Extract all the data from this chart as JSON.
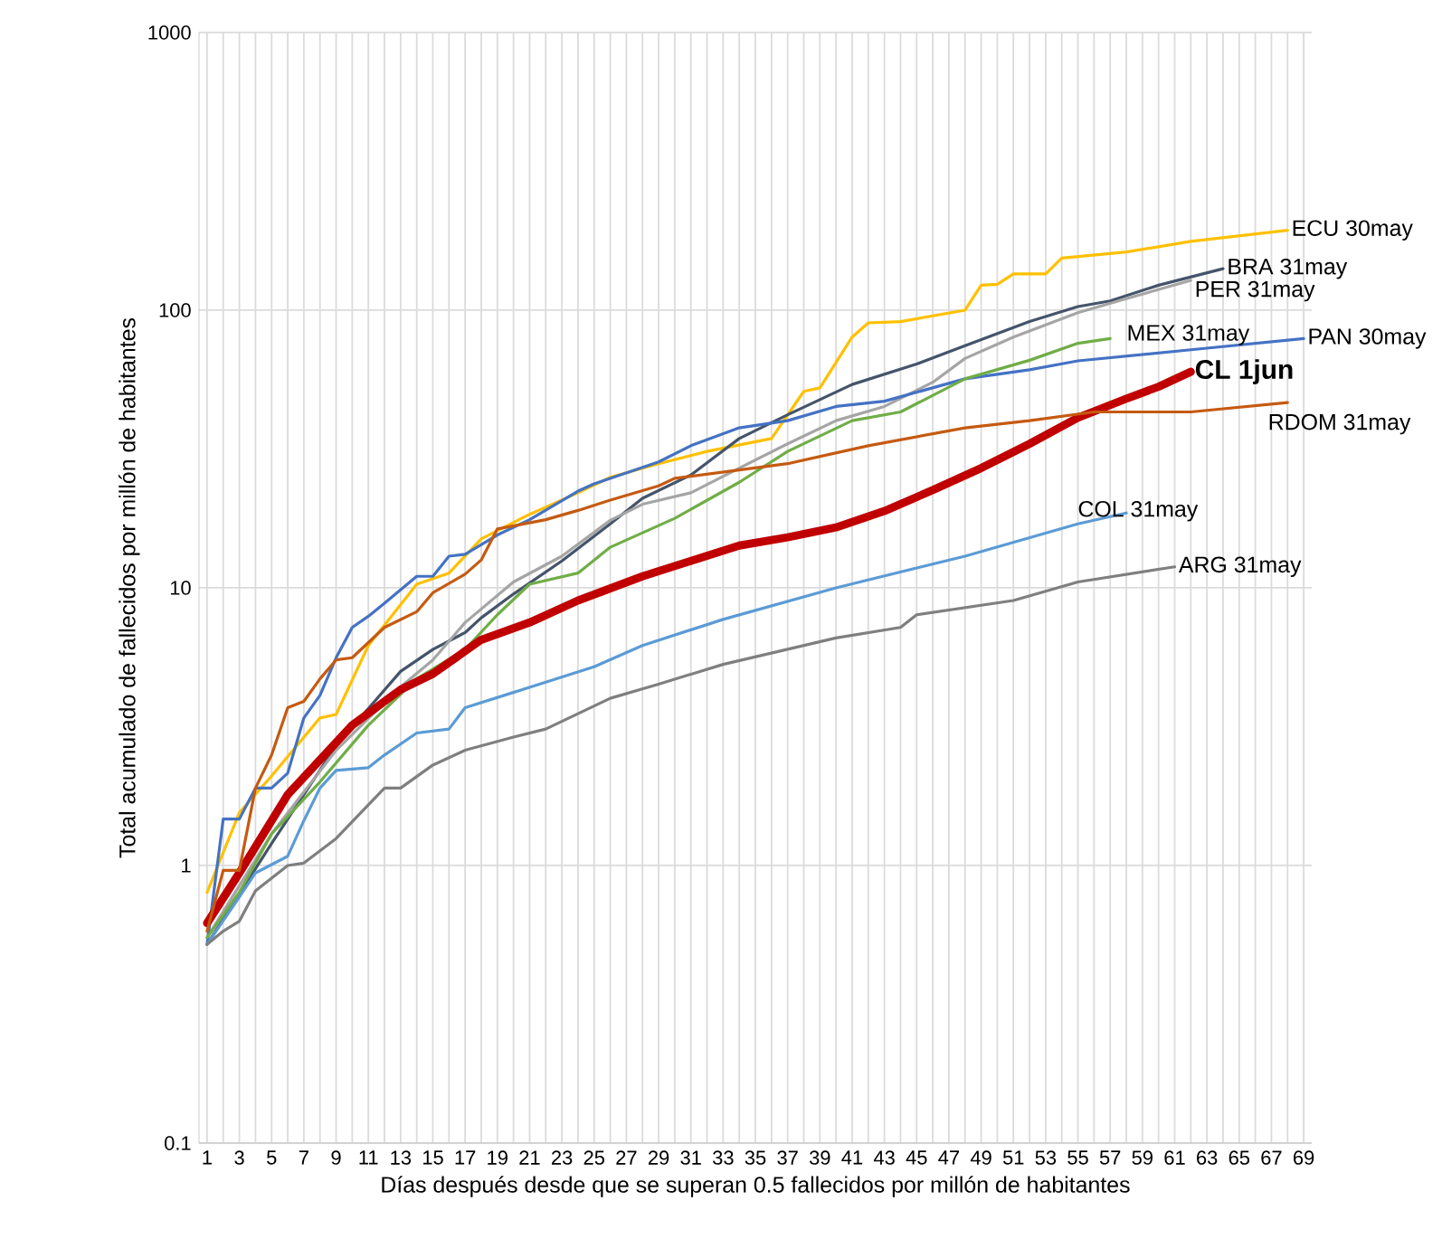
{
  "chart_data": {
    "type": "line",
    "xlabel": "Días después desde que se superan 0.5 fallecidos por millón de habitantes",
    "ylabel": "Total acumulado de fallecidos por millón de habitantes",
    "log": "y",
    "grid": true,
    "xlim": [
      0.5,
      69.5
    ],
    "xticks": [
      1,
      {
        "value": 2,
        "label": null
      },
      3,
      {
        "value": 4,
        "label": null
      },
      5,
      {
        "value": 6,
        "label": null
      },
      7,
      {
        "value": 8,
        "label": null
      },
      9,
      {
        "value": 10,
        "label": null
      },
      11,
      {
        "value": 12,
        "label": null
      },
      13,
      {
        "value": 14,
        "label": null
      },
      15,
      {
        "value": 16,
        "label": null
      },
      17,
      {
        "value": 18,
        "label": null
      },
      19,
      {
        "value": 20,
        "label": null
      },
      21,
      {
        "value": 22,
        "label": null
      },
      23,
      {
        "value": 24,
        "label": null
      },
      25,
      {
        "value": 26,
        "label": null
      },
      27,
      {
        "value": 28,
        "label": null
      },
      29,
      {
        "value": 30,
        "label": null
      },
      31,
      {
        "value": 32,
        "label": null
      },
      33,
      {
        "value": 34,
        "label": null
      },
      35,
      {
        "value": 36,
        "label": null
      },
      37,
      {
        "value": 38,
        "label": null
      },
      39,
      {
        "value": 40,
        "label": null
      },
      41,
      {
        "value": 42,
        "label": null
      },
      43,
      {
        "value": 44,
        "label": null
      },
      45,
      {
        "value": 46,
        "label": null
      },
      47,
      {
        "value": 48,
        "label": null
      },
      49,
      {
        "value": 50,
        "label": null
      },
      51,
      {
        "value": 52,
        "label": null
      },
      53,
      {
        "value": 54,
        "label": null
      },
      55,
      {
        "value": 56,
        "label": null
      },
      57,
      {
        "value": 58,
        "label": null
      },
      59,
      {
        "value": 60,
        "label": null
      },
      61,
      {
        "value": 62,
        "label": null
      },
      63,
      {
        "value": 64,
        "label": null
      },
      65,
      {
        "value": 66,
        "label": null
      },
      67,
      {
        "value": 68,
        "label": null
      },
      69
    ],
    "ylim": [
      0.1,
      1000
    ],
    "yticks": [
      0.1,
      1,
      10,
      100,
      1000
    ],
    "series": [
      {
        "name": "ECU 30may",
        "color": "#ffc000",
        "x": [
          1,
          3,
          5,
          8,
          9,
          11,
          14,
          16,
          18,
          21,
          24,
          26,
          29,
          32,
          36,
          38,
          39,
          41,
          42,
          44,
          48,
          49,
          50,
          51,
          53,
          54,
          58,
          62,
          68
        ],
        "values": [
          0.8,
          1.55,
          2.1,
          3.4,
          3.5,
          6.2,
          10.3,
          11.3,
          15,
          18.4,
          22,
          25,
          28,
          31,
          34.5,
          51,
          52.5,
          80,
          90,
          91,
          100,
          123,
          124,
          135,
          135,
          154,
          162,
          177,
          194
        ]
      },
      {
        "name": "BRA 31may",
        "color": "#44546a",
        "x": [
          1,
          5,
          9,
          13,
          15,
          17,
          18,
          20,
          23,
          26,
          28,
          31,
          34,
          37,
          41,
          45,
          48,
          52,
          55,
          57,
          60,
          64
        ],
        "values": [
          0.52,
          1.2,
          2.7,
          5,
          6,
          6.9,
          7.8,
          9.5,
          12.5,
          17,
          21,
          25.5,
          34.5,
          42,
          54,
          64,
          74.5,
          91,
          103,
          108,
          123,
          141
        ]
      },
      {
        "name": "PER 31may",
        "color": "#a5a5a5",
        "x": [
          1,
          5,
          9,
          13,
          15,
          17,
          20,
          23,
          26,
          28,
          31,
          34,
          37,
          40,
          43,
          46,
          48,
          51,
          55,
          58,
          62
        ],
        "values": [
          0.55,
          1.3,
          2.6,
          4.4,
          5.5,
          7.5,
          10.5,
          13,
          17.5,
          20,
          22,
          27,
          33,
          40,
          45,
          55,
          67,
          80,
          98,
          110,
          128
        ]
      },
      {
        "name": "PAN 30may",
        "color": "#4472c4",
        "x": [
          1,
          2,
          3,
          4,
          5,
          6,
          7,
          8,
          9,
          10,
          11,
          12,
          14,
          15,
          16,
          17,
          19,
          21,
          24,
          25,
          29,
          31,
          34,
          37,
          40,
          43,
          48,
          52,
          55,
          62,
          69
        ],
        "values": [
          0.52,
          1.47,
          1.47,
          1.9,
          1.9,
          2.15,
          3.4,
          4.1,
          5.6,
          7.2,
          7.9,
          8.8,
          11,
          11,
          13,
          13.2,
          15.5,
          17.6,
          22.3,
          23.7,
          28.4,
          32.5,
          37.7,
          40,
          45,
          47,
          56.6,
          61,
          65.7,
          72,
          79
        ]
      },
      {
        "name": "MEX 31may",
        "color": "#70ad47",
        "x": [
          1,
          3,
          5,
          8,
          11,
          14,
          17,
          19,
          21,
          24,
          26,
          30,
          34,
          37,
          41,
          44,
          48,
          52,
          55,
          57
        ],
        "values": [
          0.55,
          0.8,
          1.3,
          2,
          3.2,
          4.7,
          6,
          8,
          10.3,
          11.3,
          14,
          17.8,
          24,
          31,
          40,
          43,
          56.6,
          66,
          76,
          79
        ]
      },
      {
        "name": "CL 1jun",
        "color": "#c00000",
        "x": [
          1,
          3,
          6,
          10,
          13,
          15,
          18,
          21,
          24,
          28,
          31,
          34,
          37,
          40,
          43,
          46,
          49,
          52,
          55,
          58,
          60,
          62
        ],
        "values": [
          0.62,
          0.94,
          1.8,
          3.2,
          4.3,
          4.9,
          6.5,
          7.5,
          9,
          11,
          12.5,
          14.2,
          15.2,
          16.5,
          18.9,
          22.5,
          27,
          33,
          41,
          48,
          53,
          60
        ]
      },
      {
        "name": "RDOM 31may",
        "color": "#c55a11",
        "x": [
          1,
          2,
          3,
          4,
          5,
          6,
          7,
          8,
          9,
          10,
          12,
          14,
          15,
          17,
          18,
          19,
          22,
          24,
          26,
          29,
          30,
          37,
          42,
          48,
          52,
          56,
          62,
          68
        ],
        "values": [
          0.58,
          0.96,
          0.96,
          1.9,
          2.5,
          3.7,
          3.9,
          4.7,
          5.5,
          5.6,
          7.2,
          8.2,
          9.6,
          11.2,
          12.6,
          16.3,
          17.6,
          19,
          20.7,
          23.3,
          24.8,
          28,
          32.5,
          37.7,
          40,
          43,
          43,
          46.5
        ]
      },
      {
        "name": "COL 31may",
        "color": "#5b9bd5",
        "x": [
          1,
          3,
          4,
          6,
          7,
          8,
          9,
          11,
          12,
          14,
          16,
          17,
          20,
          25,
          28,
          33,
          40,
          48,
          55,
          58
        ],
        "values": [
          0.52,
          0.77,
          0.94,
          1.08,
          1.45,
          1.9,
          2.2,
          2.25,
          2.5,
          3,
          3.1,
          3.7,
          4.2,
          5.2,
          6.2,
          7.7,
          10,
          13,
          17,
          18.6
        ]
      },
      {
        "name": "ARG 31may",
        "color": "#7f7f7f",
        "x": [
          1,
          2,
          3,
          4,
          6,
          7,
          9,
          12,
          13,
          15,
          17,
          20,
          22,
          26,
          29,
          33,
          40,
          44,
          45,
          51,
          55,
          61
        ],
        "values": [
          0.52,
          0.58,
          0.63,
          0.81,
          1,
          1.02,
          1.25,
          1.9,
          1.9,
          2.3,
          2.6,
          2.9,
          3.1,
          4,
          4.5,
          5.3,
          6.6,
          7.2,
          8,
          9,
          10.5,
          11.9
        ]
      }
    ]
  }
}
